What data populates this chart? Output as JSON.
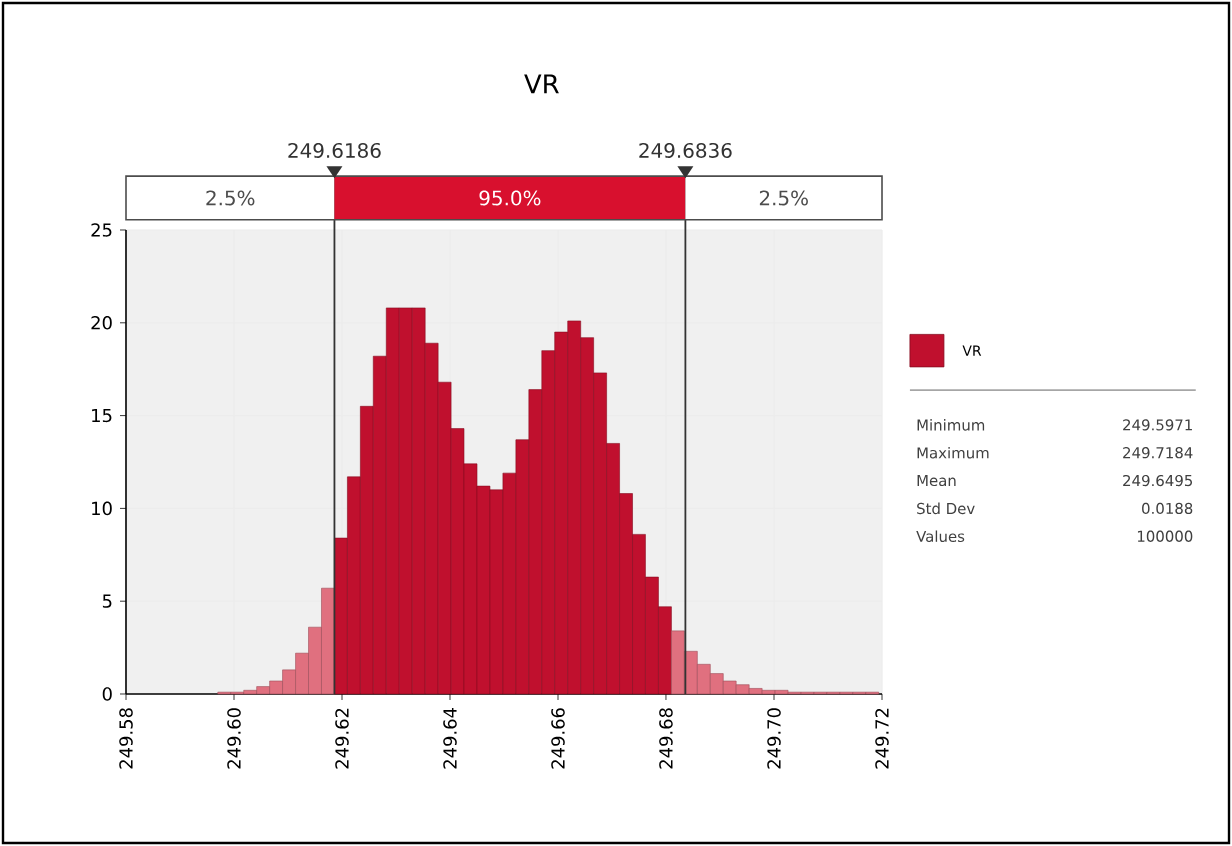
{
  "chart_data": {
    "type": "histogram",
    "title": "VR",
    "bins": [
      249.597,
      249.5994,
      249.6018,
      249.6042,
      249.6066,
      249.609,
      249.6114,
      249.6138,
      249.6162,
      249.6186,
      249.621,
      249.6234,
      249.6258,
      249.6282,
      249.6306,
      249.633,
      249.6354,
      249.6378,
      249.6402,
      249.6426,
      249.645,
      249.6474,
      249.6498,
      249.6522,
      249.6546,
      249.657,
      249.6594,
      249.6618,
      249.6642,
      249.6666,
      249.669,
      249.6714,
      249.6738,
      249.6762,
      249.6786,
      249.681,
      249.6834,
      249.6858,
      249.6882,
      249.6906,
      249.693,
      249.6954,
      249.6978,
      249.7002,
      249.7026,
      249.705,
      249.7074,
      249.7098,
      249.7122,
      249.7146,
      249.717,
      249.7194
    ],
    "series": [
      {
        "name": "VR",
        "color": "#c0102e",
        "colors": [
          "#e0707f",
          "#e0707f",
          "#e0707f",
          "#e0707f",
          "#e0707f",
          "#e0707f",
          "#e0707f",
          "#e0707f",
          "#e0707f",
          "#c0102e",
          "#c0102e",
          "#c0102e",
          "#c0102e",
          "#c0102e",
          "#c0102e",
          "#c0102e",
          "#c0102e",
          "#c0102e",
          "#c0102e",
          "#c0102e",
          "#c0102e",
          "#c0102e",
          "#c0102e",
          "#c0102e",
          "#c0102e",
          "#c0102e",
          "#c0102e",
          "#c0102e",
          "#c0102e",
          "#c0102e",
          "#c0102e",
          "#c0102e",
          "#c0102e",
          "#c0102e",
          "#c0102e",
          "#e0707f",
          "#e0707f",
          "#e0707f",
          "#e0707f",
          "#e0707f",
          "#e0707f",
          "#e0707f",
          "#e0707f",
          "#e0707f",
          "#e0707f",
          "#e0707f",
          "#e0707f",
          "#e0707f",
          "#e0707f",
          "#e0707f",
          "#e0707f"
        ],
        "values": [
          0.1,
          0.1,
          0.2,
          0.4,
          0.7,
          1.3,
          2.2,
          3.6,
          5.7,
          8.4,
          11.7,
          15.5,
          18.2,
          20.8,
          20.8,
          20.8,
          18.9,
          16.8,
          14.3,
          12.4,
          11.2,
          11.0,
          11.9,
          13.7,
          16.4,
          18.5,
          19.5,
          20.1,
          19.2,
          17.3,
          13.5,
          10.8,
          8.6,
          6.3,
          4.7,
          3.4,
          2.3,
          1.6,
          1.1,
          0.7,
          0.5,
          0.3,
          0.2,
          0.2,
          0.1,
          0.1,
          0.1,
          0.1,
          0.1,
          0.1,
          0.1
        ]
      }
    ],
    "xlim": [
      249.58,
      249.72
    ],
    "ylim": [
      0,
      25
    ],
    "xticks": [
      {
        "value": 249.58,
        "label": "249.58"
      },
      {
        "value": 249.6,
        "label": "249.60"
      },
      {
        "value": 249.62,
        "label": "249.62"
      },
      {
        "value": 249.64,
        "label": "249.64"
      },
      {
        "value": 249.66,
        "label": "249.66"
      },
      {
        "value": 249.68,
        "label": "249.68"
      },
      {
        "value": 249.7,
        "label": "249.70"
      },
      {
        "value": 249.72,
        "label": "249.72"
      }
    ],
    "yticks": [
      0,
      5,
      10,
      15,
      20,
      25
    ],
    "grid": true,
    "legend": "right",
    "ref_lines": [
      {
        "axis": "x",
        "value": 249.6186,
        "label": "249.6186"
      },
      {
        "axis": "x",
        "value": 249.6836,
        "label": "249.6836"
      }
    ],
    "annotations": [
      "2.5%",
      "95.0%",
      "2.5%",
      "Minimum",
      "249.5971",
      "Maximum",
      "249.7184",
      "Mean",
      "249.6495",
      "Std Dev",
      "0.0188",
      "Values",
      "100000"
    ]
  }
}
